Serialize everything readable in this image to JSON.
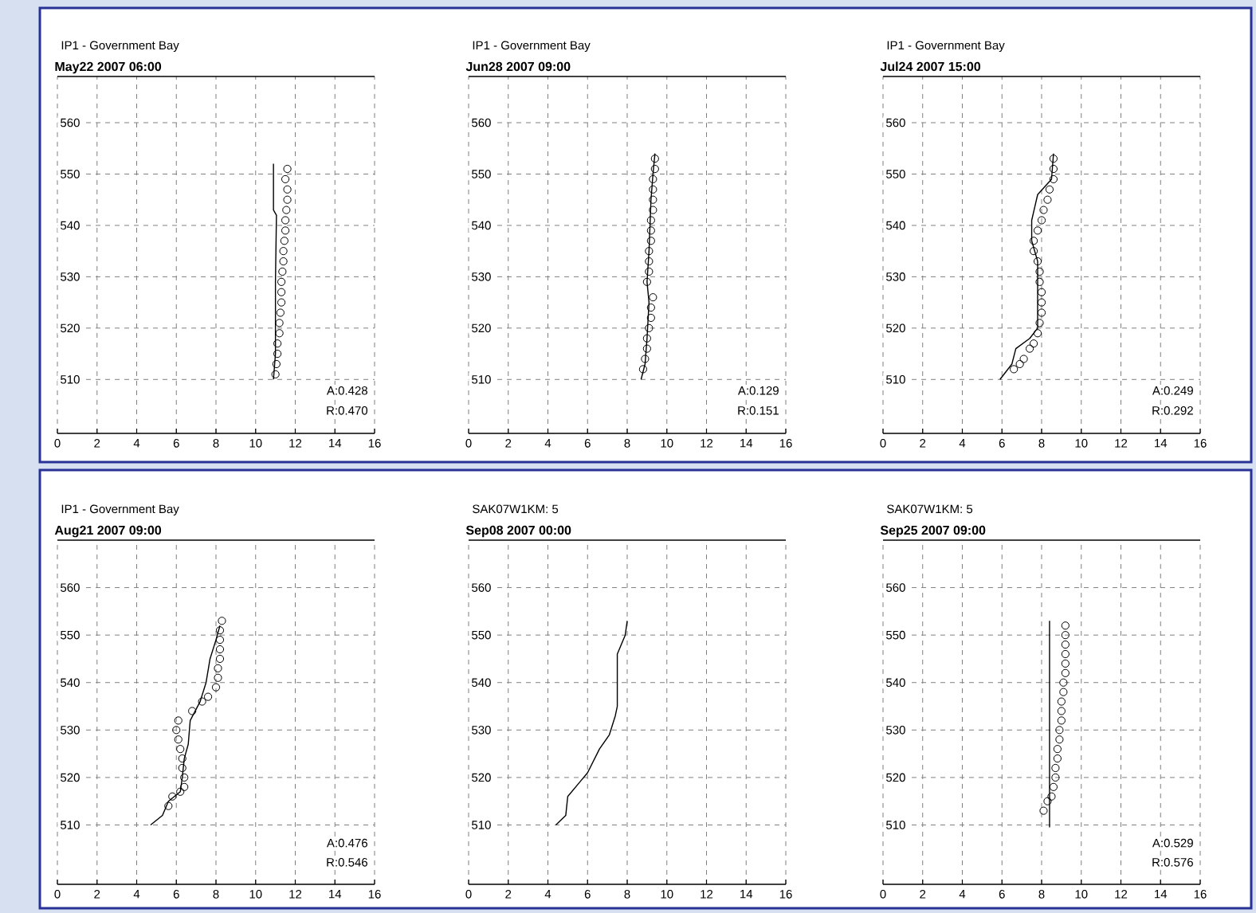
{
  "chart_data": [
    {
      "type": "line",
      "title": "IP1 - Government Bay",
      "subtitle": "May22 2007 06:00",
      "xlim": [
        0,
        16
      ],
      "ylim": [
        499.5,
        569
      ],
      "xticks": [
        0,
        2,
        4,
        6,
        8,
        10,
        12,
        14,
        16
      ],
      "yticks": [
        510,
        520,
        530,
        540,
        550,
        560
      ],
      "grid": true,
      "annotations": [
        "A:0.428",
        "R:0.470"
      ],
      "series": [
        {
          "color": "#000000",
          "x": [
            10.9,
            11.0,
            11.0,
            11.05,
            10.9,
            10.9
          ],
          "values": [
            510,
            515,
            529,
            542,
            543,
            552
          ]
        },
        {
          "type": "scatter",
          "marker": "circle",
          "color": "#000000",
          "x": [
            11.0,
            11.05,
            11.1,
            11.1,
            11.2,
            11.2,
            11.25,
            11.3,
            11.3,
            11.3,
            11.35,
            11.4,
            11.4,
            11.45,
            11.5,
            11.5,
            11.55,
            11.6,
            11.6,
            11.5,
            11.6
          ],
          "values": [
            511,
            513,
            515,
            517,
            519,
            521,
            523,
            525,
            527,
            529,
            531,
            533,
            535,
            537,
            539,
            541,
            543,
            545,
            547,
            549,
            551
          ]
        }
      ]
    },
    {
      "type": "line",
      "title": "IP1 - Government Bay",
      "subtitle": "Jun28 2007 09:00",
      "xlim": [
        0,
        16
      ],
      "ylim": [
        499.5,
        569
      ],
      "xticks": [
        0,
        2,
        4,
        6,
        8,
        10,
        12,
        14,
        16
      ],
      "yticks": [
        510,
        520,
        530,
        540,
        550,
        560
      ],
      "grid": true,
      "annotations": [
        "A:0.129",
        "R:0.151"
      ],
      "series": [
        {
          "color": "#000000",
          "x": [
            8.7,
            8.9,
            9.0,
            9.1,
            9.0,
            9.1,
            9.2,
            9.3,
            9.4
          ],
          "values": [
            510,
            513,
            518,
            525,
            529,
            535,
            545,
            550,
            554
          ]
        },
        {
          "type": "scatter",
          "marker": "circle",
          "color": "#000000",
          "x": [
            8.8,
            8.9,
            9.0,
            9.0,
            9.1,
            9.2,
            9.2,
            9.3,
            9.0,
            9.1,
            9.1,
            9.1,
            9.2,
            9.2,
            9.2,
            9.3,
            9.3,
            9.3,
            9.3,
            9.4,
            9.4
          ],
          "values": [
            512,
            514,
            516,
            518,
            520,
            522,
            524,
            526,
            529,
            531,
            533,
            535,
            537,
            539,
            541,
            543,
            545,
            547,
            549,
            551,
            553
          ]
        }
      ]
    },
    {
      "type": "line",
      "title": "IP1 - Government Bay",
      "subtitle": "Jul24 2007 15:00",
      "xlim": [
        0,
        16
      ],
      "ylim": [
        499.5,
        569
      ],
      "xticks": [
        0,
        2,
        4,
        6,
        8,
        10,
        12,
        14,
        16
      ],
      "yticks": [
        510,
        520,
        530,
        540,
        550,
        560
      ],
      "grid": true,
      "annotations": [
        "A:0.249",
        "R:0.292"
      ],
      "series": [
        {
          "color": "#000000",
          "x": [
            5.9,
            6.5,
            6.7,
            7.4,
            7.8,
            7.8,
            7.5,
            7.5,
            7.8,
            8.5,
            8.6
          ],
          "values": [
            510,
            513,
            516,
            518,
            520,
            533,
            537,
            541,
            546,
            549,
            554
          ]
        },
        {
          "type": "scatter",
          "marker": "circle",
          "color": "#000000",
          "x": [
            6.6,
            6.9,
            7.1,
            7.4,
            7.6,
            7.8,
            7.9,
            8.0,
            8.0,
            8.0,
            7.9,
            7.9,
            7.8,
            7.6,
            7.6,
            7.8,
            8.0,
            8.1,
            8.3,
            8.4,
            8.6,
            8.6,
            8.6
          ],
          "values": [
            512,
            513,
            514,
            516,
            517,
            519,
            521,
            523,
            525,
            527,
            529,
            531,
            533,
            535,
            537,
            539,
            541,
            543,
            545,
            547,
            549,
            551,
            553
          ]
        }
      ]
    },
    {
      "type": "line",
      "title": "IP1 - Government Bay",
      "subtitle": "Aug21 2007 09:00",
      "xlim": [
        0,
        16
      ],
      "ylim": [
        497.5,
        570
      ],
      "xticks": [
        0,
        2,
        4,
        6,
        8,
        10,
        12,
        14,
        16
      ],
      "yticks": [
        510,
        520,
        530,
        540,
        550,
        560
      ],
      "grid": true,
      "annotations": [
        "A:0.476",
        "R:0.546"
      ],
      "series": [
        {
          "color": "#000000",
          "x": [
            4.7,
            5.3,
            5.6,
            6.2,
            6.3,
            6.4,
            6.6,
            6.7,
            7.2,
            7.5,
            7.7,
            8.0,
            8.2
          ],
          "values": [
            510,
            512,
            515,
            517,
            520,
            524,
            527,
            532,
            536,
            540,
            545,
            549,
            552
          ]
        },
        {
          "type": "scatter",
          "marker": "circle",
          "color": "#000000",
          "x": [
            5.6,
            5.8,
            6.2,
            6.4,
            6.4,
            6.3,
            6.3,
            6.2,
            6.1,
            6.0,
            6.1,
            6.8,
            7.3,
            7.6,
            8.0,
            8.1,
            8.1,
            8.2,
            8.2,
            8.2,
            8.2,
            8.3
          ],
          "values": [
            514,
            516,
            517,
            518,
            520,
            522,
            524,
            526,
            528,
            530,
            532,
            534,
            536,
            537,
            539,
            541,
            543,
            545,
            547,
            549,
            551,
            553
          ]
        }
      ]
    },
    {
      "type": "line",
      "title": "SAK07W1KM: 5",
      "subtitle": "Sep08 2007 00:00",
      "xlim": [
        0,
        16
      ],
      "ylim": [
        497.5,
        570
      ],
      "xticks": [
        0,
        2,
        4,
        6,
        8,
        10,
        12,
        14,
        16
      ],
      "yticks": [
        510,
        520,
        530,
        540,
        550,
        560
      ],
      "grid": true,
      "series": [
        {
          "color": "#000000",
          "x": [
            4.4,
            4.9,
            5.0,
            5.6,
            6.0,
            6.6,
            7.1,
            7.4,
            7.5,
            7.5,
            7.9,
            8.0
          ],
          "values": [
            510,
            512,
            516,
            519,
            521,
            526,
            529,
            533,
            535,
            546,
            550,
            553
          ]
        }
      ]
    },
    {
      "type": "line",
      "title": "SAK07W1KM: 5",
      "subtitle": "Sep25 2007 09:00",
      "xlim": [
        0,
        16
      ],
      "ylim": [
        497.5,
        570
      ],
      "xticks": [
        0,
        2,
        4,
        6,
        8,
        10,
        12,
        14,
        16
      ],
      "yticks": [
        510,
        520,
        530,
        540,
        550,
        560
      ],
      "grid": true,
      "annotations": [
        "A:0.529",
        "R:0.576"
      ],
      "series": [
        {
          "color": "#000000",
          "x": [
            8.4,
            8.4
          ],
          "values": [
            509.5,
            553
          ]
        },
        {
          "type": "scatter",
          "marker": "circle",
          "color": "#000000",
          "x": [
            8.1,
            8.3,
            8.5,
            8.6,
            8.7,
            8.7,
            8.8,
            8.8,
            8.9,
            8.9,
            9.0,
            9.0,
            9.0,
            9.1,
            9.1,
            9.2,
            9.2,
            9.2,
            9.2,
            9.2,
            9.2
          ],
          "values": [
            513,
            515,
            516,
            518,
            520,
            522,
            524,
            526,
            528,
            530,
            532,
            534,
            536,
            538,
            540,
            542,
            544,
            546,
            548,
            550,
            552
          ]
        }
      ]
    }
  ]
}
